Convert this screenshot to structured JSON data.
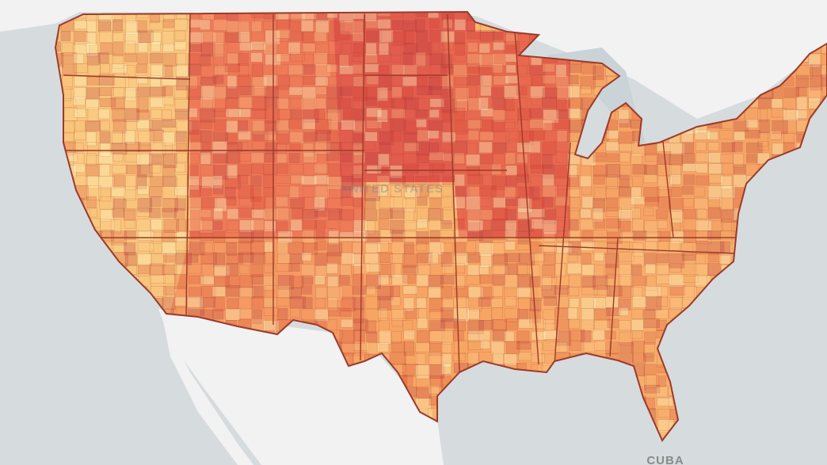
{
  "map": {
    "labels": {
      "country": "UNITED STATES",
      "neighbor": "CUBA"
    }
  }
}
